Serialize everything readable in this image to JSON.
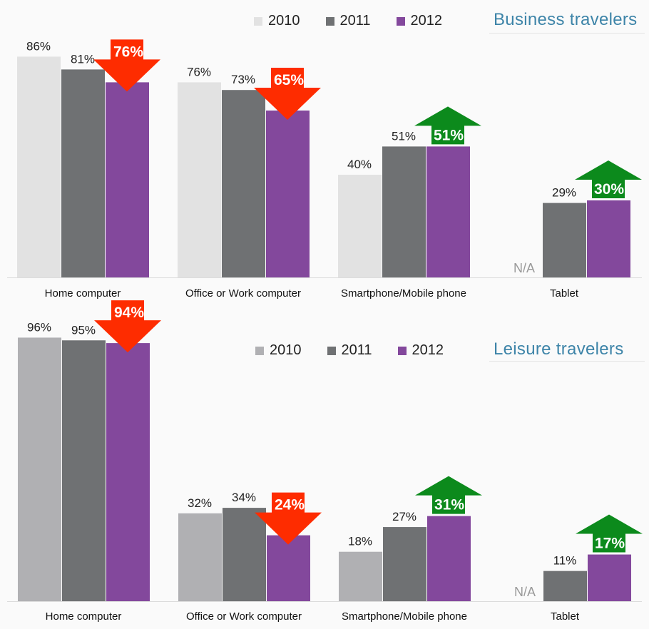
{
  "chart_data": [
    {
      "type": "bar",
      "title": "Business travelers",
      "categories": [
        "Home computer",
        "Office or Work computer",
        "Smartphone/Mobile phone",
        "Tablet"
      ],
      "series": [
        {
          "name": "2010",
          "color": "#e2e2e2",
          "values": [
            86,
            76,
            40,
            null
          ],
          "labels": [
            "86%",
            "76%",
            "40%",
            "N/A"
          ]
        },
        {
          "name": "2011",
          "color": "#6f7173",
          "values": [
            81,
            73,
            51,
            29
          ],
          "labels": [
            "81%",
            "73%",
            "51%",
            "29%"
          ]
        },
        {
          "name": "2012",
          "color": "#83489c",
          "values": [
            76,
            65,
            51,
            30
          ],
          "labels": [
            "76%",
            "65%",
            "51%",
            "30%"
          ]
        }
      ],
      "trend_2012": [
        "down",
        "down",
        "up",
        "up"
      ],
      "ylim": [
        0,
        100
      ],
      "legend_position": "top-right",
      "grid": false
    },
    {
      "type": "bar",
      "title": "Leisure travelers",
      "categories": [
        "Home computer",
        "Office or Work computer",
        "Smartphone/Mobile phone",
        "Tablet"
      ],
      "series": [
        {
          "name": "2010",
          "color": "#b0b0b3",
          "values": [
            96,
            32,
            18,
            null
          ],
          "labels": [
            "96%",
            "32%",
            "18%",
            "N/A"
          ]
        },
        {
          "name": "2011",
          "color": "#6f7173",
          "values": [
            95,
            34,
            27,
            11
          ],
          "labels": [
            "95%",
            "34%",
            "27%",
            "11%"
          ]
        },
        {
          "name": "2012",
          "color": "#83489c",
          "values": [
            94,
            24,
            31,
            17
          ],
          "labels": [
            "94%",
            "24%",
            "31%",
            "17%"
          ]
        }
      ],
      "trend_2012": [
        "down",
        "down",
        "up",
        "up"
      ],
      "ylim": [
        0,
        100
      ],
      "legend_position": "top-right",
      "grid": false
    }
  ],
  "colors": {
    "down_arrow": "#fe2c00",
    "up_arrow": "#0c8a1c",
    "title": "#3d84a8",
    "na_text": "#999999"
  }
}
